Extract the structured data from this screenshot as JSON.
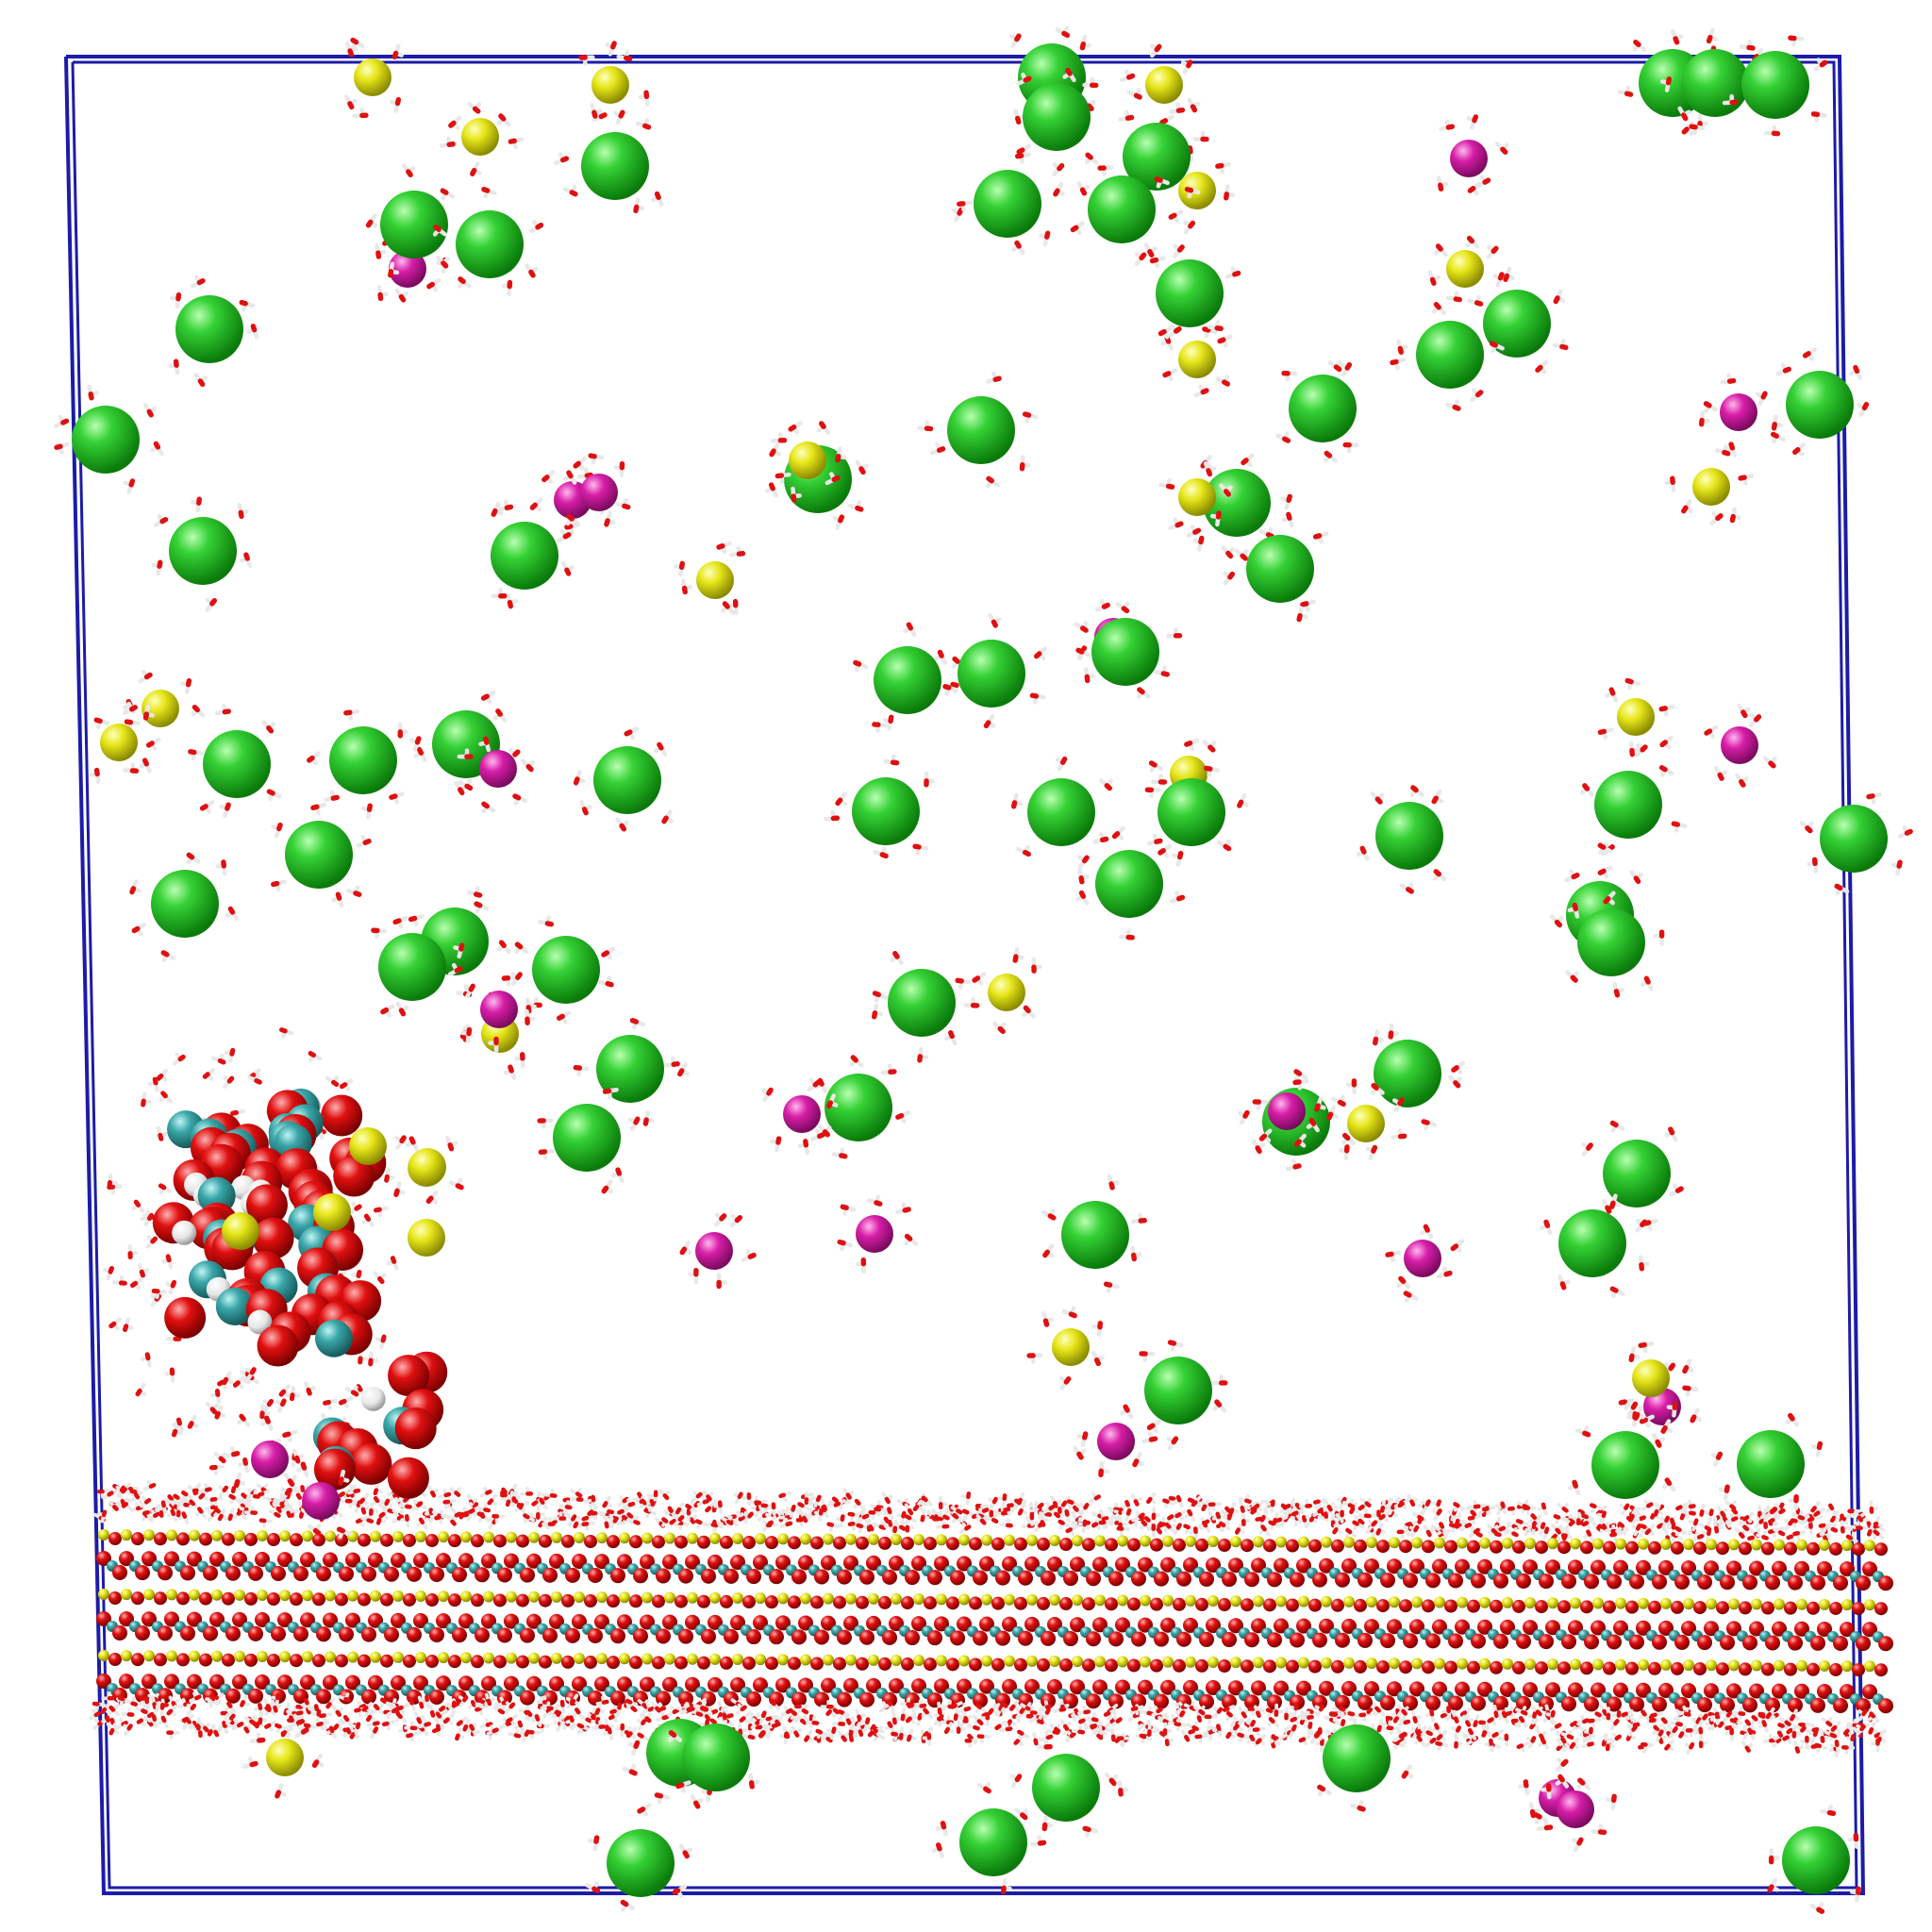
{
  "scene": {
    "background": "#ffffff",
    "box_color": "#1c1ca8",
    "colors": {
      "chloride": "#1fbf1f",
      "sodium": "#dcdc12",
      "magnesium": "#d81ea8",
      "oxygen": "#e00e0e",
      "hydrogen": "#f2f2f2",
      "carbon": "#3aa6a8",
      "surface_metal": "#c8c810",
      "surface_silicon": "#2a8c8c"
    },
    "legend": []
  }
}
